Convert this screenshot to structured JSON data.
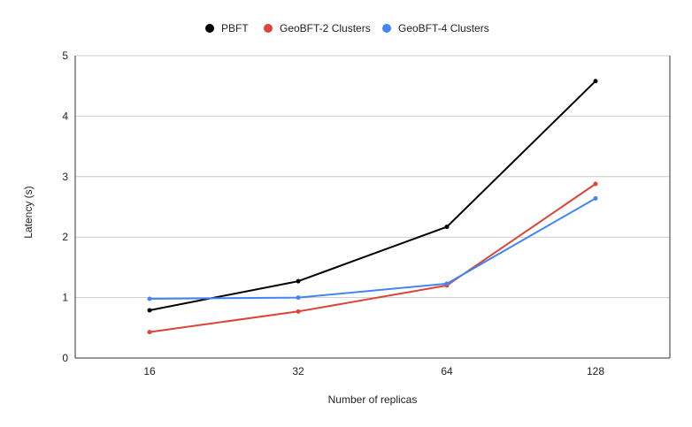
{
  "chart_data": {
    "type": "line",
    "categories": [
      "16",
      "32",
      "64",
      "128"
    ],
    "series": [
      {
        "name": "PBFT",
        "color": "#000000",
        "values": [
          0.79,
          1.27,
          2.17,
          4.58
        ]
      },
      {
        "name": "GeoBFT-2 Clusters",
        "color": "#db4437",
        "values": [
          0.43,
          0.77,
          1.2,
          2.88
        ]
      },
      {
        "name": "GeoBFT-4 Clusters",
        "color": "#4285f4",
        "values": [
          0.98,
          1.0,
          1.23,
          2.64
        ]
      }
    ],
    "xlabel": "Number of replicas",
    "ylabel": "Latency (s)",
    "ylim": [
      0,
      5
    ],
    "yticks": [
      "0",
      "1",
      "2",
      "3",
      "4",
      "5"
    ],
    "grid": true,
    "legend_position": "top"
  }
}
